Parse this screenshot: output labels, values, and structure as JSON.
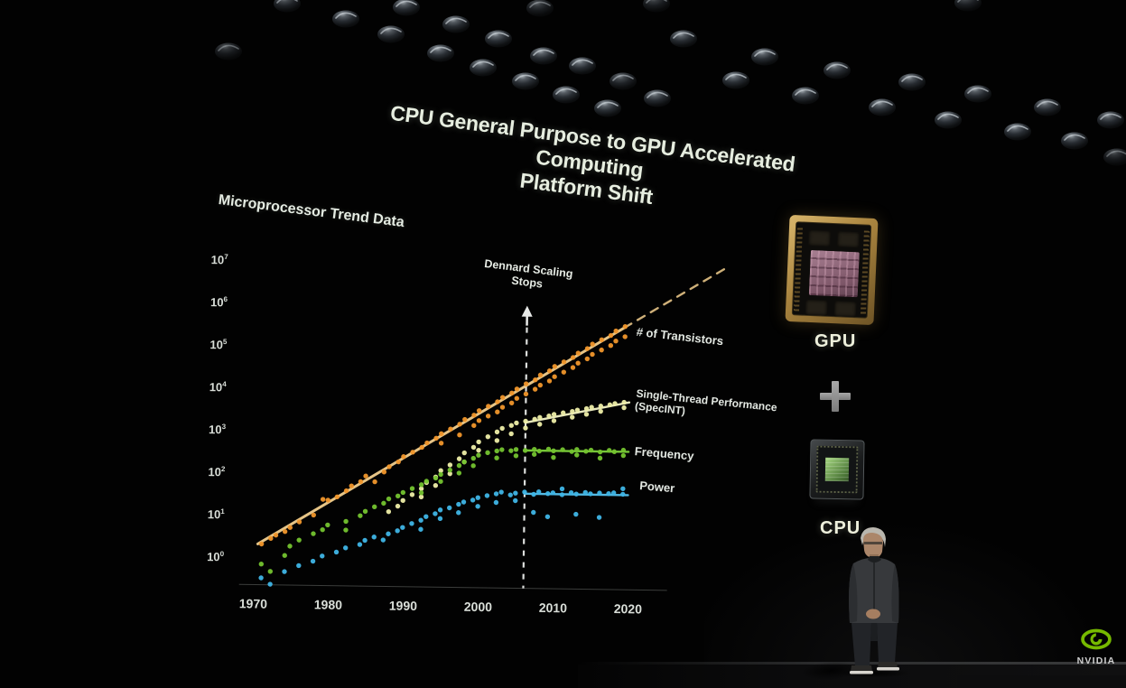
{
  "slide": {
    "title_line1": "CPU General Purpose to GPU Accelerated Computing",
    "title_line2": "Platform Shift",
    "chart_heading": "Microprocessor Trend Data"
  },
  "chart_data": {
    "type": "scatter",
    "title": "Microprocessor Trend Data",
    "x_axis": {
      "ticks": [
        1970,
        1980,
        1990,
        2000,
        2010,
        2020
      ],
      "range": [
        1969,
        2021
      ]
    },
    "y_axis": {
      "scale": "log",
      "exponents": [
        7,
        6,
        5,
        4,
        3,
        2,
        1,
        0
      ],
      "base": "10"
    },
    "annotation": {
      "line1": "Dennard Scaling",
      "line2": "Stops",
      "year": 2006
    },
    "series": [
      {
        "name": "transistors",
        "label": "# of Transistors",
        "color": "#f0962b",
        "line_color": "#f3cf8e",
        "trend_solid": [
          [
            1970.5,
            2.2
          ],
          [
            2019,
            360000
          ]
        ],
        "trend_dashed": [
          [
            2019,
            360000
          ],
          [
            2032.5,
            10000000
          ]
        ],
        "points": [
          [
            1971,
            2.2
          ],
          [
            1972,
            3.0
          ],
          [
            1973,
            3.6
          ],
          [
            1974,
            4.4
          ],
          [
            1975,
            5.5
          ],
          [
            1976,
            7.5
          ],
          [
            1978,
            11
          ],
          [
            1979,
            26
          ],
          [
            1980,
            25
          ],
          [
            1981,
            30
          ],
          [
            1982,
            42
          ],
          [
            1983,
            55
          ],
          [
            1984,
            70
          ],
          [
            1985,
            95
          ],
          [
            1986,
            70
          ],
          [
            1987,
            120
          ],
          [
            1988,
            160
          ],
          [
            1989,
            210
          ],
          [
            1990,
            280
          ],
          [
            1991,
            360
          ],
          [
            1992,
            470
          ],
          [
            1993,
            600
          ],
          [
            1994,
            780
          ],
          [
            1995,
            1000
          ],
          [
            1995,
            600
          ],
          [
            1996,
            1300
          ],
          [
            1997,
            1700
          ],
          [
            1997,
            950
          ],
          [
            1998,
            2200
          ],
          [
            1999,
            2800
          ],
          [
            1999,
            1600
          ],
          [
            2000,
            3600
          ],
          [
            2000,
            2100
          ],
          [
            2001,
            4600
          ],
          [
            2001,
            2700
          ],
          [
            2002,
            5900
          ],
          [
            2002,
            3400
          ],
          [
            2003,
            7500
          ],
          [
            2003,
            4400
          ],
          [
            2004,
            9600
          ],
          [
            2004,
            5600
          ],
          [
            2005,
            12000
          ],
          [
            2005,
            7200
          ],
          [
            2006,
            16000
          ],
          [
            2006,
            9200
          ],
          [
            2007,
            20000
          ],
          [
            2007,
            12000
          ],
          [
            2008,
            26000
          ],
          [
            2008,
            15000
          ],
          [
            2009,
            33000
          ],
          [
            2009,
            19000
          ],
          [
            2010,
            42000
          ],
          [
            2010,
            24000
          ],
          [
            2011,
            54000
          ],
          [
            2011,
            31000
          ],
          [
            2012,
            69000
          ],
          [
            2012,
            40000
          ],
          [
            2013,
            88000
          ],
          [
            2013,
            51000
          ],
          [
            2014,
            113000
          ],
          [
            2014,
            65000
          ],
          [
            2015,
            145000
          ],
          [
            2015,
            83000
          ],
          [
            2016,
            185000
          ],
          [
            2016,
            106000
          ],
          [
            2017,
            235000
          ],
          [
            2017,
            136000
          ],
          [
            2018,
            300000
          ],
          [
            2018,
            174000
          ],
          [
            2019,
            385000
          ],
          [
            2019,
            222000
          ]
        ]
      },
      {
        "name": "single-thread-performance",
        "label": "Single-Thread Performance",
        "label2": "(SpecINT)",
        "color": "#eeeea8",
        "line_color": "#f4f4c6",
        "trend_solid": [
          [
            2006,
            1950
          ],
          [
            2019.8,
            6300
          ]
        ],
        "points": [
          [
            1988,
            14
          ],
          [
            1989,
            19
          ],
          [
            1990,
            26
          ],
          [
            1991,
            36
          ],
          [
            1992,
            50
          ],
          [
            1992,
            32
          ],
          [
            1993,
            70
          ],
          [
            1994,
            95
          ],
          [
            1994,
            60
          ],
          [
            1995,
            135
          ],
          [
            1996,
            185
          ],
          [
            1996,
            115
          ],
          [
            1997,
            260
          ],
          [
            1998,
            360
          ],
          [
            1998,
            220
          ],
          [
            1999,
            490
          ],
          [
            2000,
            660
          ],
          [
            2000,
            420
          ],
          [
            2001,
            880
          ],
          [
            2002,
            1150
          ],
          [
            2002,
            720
          ],
          [
            2003,
            1400
          ],
          [
            2004,
            1650
          ],
          [
            2004,
            1050
          ],
          [
            2005,
            1900
          ],
          [
            2006,
            2100
          ],
          [
            2006,
            1450
          ],
          [
            2007,
            2350
          ],
          [
            2008,
            2600
          ],
          [
            2008,
            1800
          ],
          [
            2009,
            2850
          ],
          [
            2010,
            3100
          ],
          [
            2010,
            2200
          ],
          [
            2011,
            3400
          ],
          [
            2012,
            3700
          ],
          [
            2012,
            2700
          ],
          [
            2013,
            4000
          ],
          [
            2014,
            4350
          ],
          [
            2014,
            3200
          ],
          [
            2015,
            4700
          ],
          [
            2016,
            5050
          ],
          [
            2016,
            3800
          ],
          [
            2017,
            5450
          ],
          [
            2018,
            5850
          ],
          [
            2019,
            6300
          ],
          [
            2019,
            4700
          ]
        ]
      },
      {
        "name": "frequency",
        "label": "Frequency",
        "color": "#74c32f",
        "line_color": "#7dd03c",
        "trend_solid": [
          [
            2006,
            430
          ],
          [
            2019.8,
            430
          ]
        ],
        "points": [
          [
            1971,
            0.74
          ],
          [
            1972,
            0.5
          ],
          [
            1974,
            1.2
          ],
          [
            1975,
            2
          ],
          [
            1976,
            2.8
          ],
          [
            1978,
            4
          ],
          [
            1979,
            5
          ],
          [
            1980,
            6.5
          ],
          [
            1982,
            8
          ],
          [
            1982,
            5
          ],
          [
            1984,
            11
          ],
          [
            1985,
            14
          ],
          [
            1986,
            18
          ],
          [
            1987,
            22
          ],
          [
            1988,
            28
          ],
          [
            1989,
            33
          ],
          [
            1990,
            40
          ],
          [
            1991,
            50
          ],
          [
            1992,
            62
          ],
          [
            1992,
            40
          ],
          [
            1993,
            75
          ],
          [
            1994,
            90
          ],
          [
            1995,
            110
          ],
          [
            1995,
            75
          ],
          [
            1996,
            140
          ],
          [
            1997,
            180
          ],
          [
            1997,
            120
          ],
          [
            1998,
            220
          ],
          [
            1999,
            270
          ],
          [
            1999,
            180
          ],
          [
            2000,
            320
          ],
          [
            2001,
            370
          ],
          [
            2002,
            410
          ],
          [
            2002,
            280
          ],
          [
            2003,
            440
          ],
          [
            2004,
            420
          ],
          [
            2005,
            450
          ],
          [
            2005,
            320
          ],
          [
            2006,
            430
          ],
          [
            2007,
            460
          ],
          [
            2007,
            350
          ],
          [
            2008,
            420
          ],
          [
            2009,
            470
          ],
          [
            2010,
            430
          ],
          [
            2010,
            300
          ],
          [
            2011,
            460
          ],
          [
            2012,
            420
          ],
          [
            2013,
            470
          ],
          [
            2013,
            350
          ],
          [
            2014,
            430
          ],
          [
            2015,
            460
          ],
          [
            2016,
            420
          ],
          [
            2016,
            300
          ],
          [
            2017,
            460
          ],
          [
            2018,
            430
          ],
          [
            2019,
            470
          ],
          [
            2019,
            350
          ]
        ]
      },
      {
        "name": "power",
        "label": "Power",
        "color": "#3fb5e6",
        "line_color": "#58c3ee",
        "trend_solid": [
          [
            2006,
            41
          ],
          [
            2019.8,
            41
          ]
        ],
        "points": [
          [
            1971,
            0.35
          ],
          [
            1972,
            0.25
          ],
          [
            1974,
            0.5
          ],
          [
            1976,
            0.7
          ],
          [
            1978,
            0.9
          ],
          [
            1979,
            1.2
          ],
          [
            1981,
            1.5
          ],
          [
            1982,
            1.9
          ],
          [
            1984,
            2.3
          ],
          [
            1985,
            2.9
          ],
          [
            1986,
            3.5
          ],
          [
            1987,
            3
          ],
          [
            1988,
            4.2
          ],
          [
            1989,
            5
          ],
          [
            1990,
            6
          ],
          [
            1991,
            7.5
          ],
          [
            1992,
            9
          ],
          [
            1992,
            5.5
          ],
          [
            1993,
            11
          ],
          [
            1994,
            13
          ],
          [
            1995,
            16
          ],
          [
            1995,
            10
          ],
          [
            1996,
            18
          ],
          [
            1997,
            22
          ],
          [
            1997,
            14
          ],
          [
            1998,
            25
          ],
          [
            1999,
            28
          ],
          [
            2000,
            32
          ],
          [
            2000,
            20
          ],
          [
            2001,
            36
          ],
          [
            2002,
            40
          ],
          [
            2002,
            25
          ],
          [
            2003,
            44
          ],
          [
            2004,
            38
          ],
          [
            2005,
            42
          ],
          [
            2005,
            28
          ],
          [
            2006,
            45
          ],
          [
            2007,
            40
          ],
          [
            2007,
            15
          ],
          [
            2008,
            46
          ],
          [
            2009,
            42
          ],
          [
            2009,
            12
          ],
          [
            2010,
            44
          ],
          [
            2011,
            40
          ],
          [
            2011,
            55
          ],
          [
            2012,
            45
          ],
          [
            2013,
            42
          ],
          [
            2013,
            14
          ],
          [
            2014,
            46
          ],
          [
            2015,
            43
          ],
          [
            2016,
            45
          ],
          [
            2016,
            12
          ],
          [
            2017,
            44
          ],
          [
            2018,
            46
          ],
          [
            2019,
            43
          ],
          [
            2019,
            58
          ]
        ]
      }
    ]
  },
  "right_panel": {
    "gpu_label": "GPU",
    "plus": "+",
    "cpu_label": "CPU"
  },
  "branding": {
    "logo_text": "NVIDIA",
    "brand_green": "#76b900"
  },
  "stage": {
    "lights": [
      [
        318,
        4,
        0.7
      ],
      [
        383,
        21,
        0.9
      ],
      [
        450,
        8,
        0.9
      ],
      [
        433,
        38,
        0.85
      ],
      [
        505,
        27,
        0.9
      ],
      [
        488,
        59,
        0.95
      ],
      [
        552,
        43,
        0.95
      ],
      [
        535,
        75,
        0.95
      ],
      [
        602,
        62,
        0.95
      ],
      [
        582,
        90,
        0.95
      ],
      [
        645,
        73,
        0.95
      ],
      [
        627,
        105,
        0.95
      ],
      [
        673,
        120,
        0.95
      ],
      [
        690,
        90,
        0.7
      ],
      [
        728,
        109,
        0.9
      ],
      [
        598,
        9,
        0.55
      ],
      [
        727,
        4,
        0.55
      ],
      [
        757,
        43,
        0.9
      ],
      [
        815,
        89,
        0.95
      ],
      [
        847,
        63,
        0.95
      ],
      [
        892,
        106,
        0.95
      ],
      [
        927,
        78,
        0.9
      ],
      [
        977,
        119,
        0.95
      ],
      [
        1010,
        91,
        0.9
      ],
      [
        1050,
        133,
        0.95
      ],
      [
        1083,
        104,
        0.9
      ],
      [
        1127,
        146,
        0.95
      ],
      [
        1160,
        119,
        0.9
      ],
      [
        1190,
        156,
        0.9
      ],
      [
        1230,
        133,
        0.85
      ],
      [
        1072,
        3,
        0.6
      ],
      [
        1237,
        174,
        0.5
      ],
      [
        253,
        57,
        0.5
      ]
    ]
  }
}
